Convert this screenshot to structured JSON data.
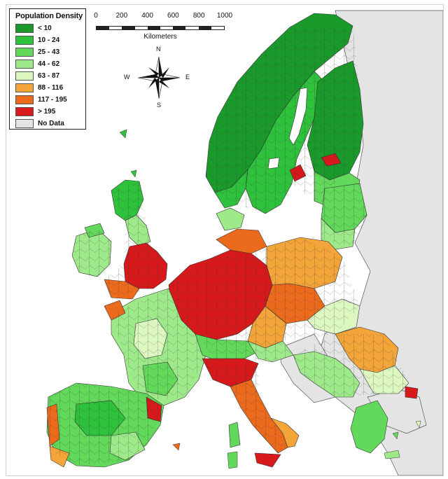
{
  "legend": {
    "title": "Population Density",
    "classes": [
      {
        "label": "< 10",
        "color": "#1a9a2a"
      },
      {
        "label": "10 - 24",
        "color": "#2ec13b"
      },
      {
        "label": "25 - 43",
        "color": "#62d95a"
      },
      {
        "label": "44 - 62",
        "color": "#9ee98a"
      },
      {
        "label": "63 - 87",
        "color": "#dcf7bf"
      },
      {
        "label": "88 - 116",
        "color": "#f3a53a"
      },
      {
        "label": "117 - 195",
        "color": "#ec6a1c"
      },
      {
        "label": "> 195",
        "color": "#d7191c"
      },
      {
        "label": "No Data",
        "color": "#e4e4e4"
      }
    ]
  },
  "scale": {
    "ticks": [
      "0",
      "200",
      "400",
      "600",
      "800",
      "1000"
    ],
    "units": "Kilometers"
  },
  "compass": {
    "n": "N",
    "s": "S",
    "e": "E",
    "w": "W"
  },
  "colors": {
    "sea": "#ffffff",
    "border": "#333333",
    "nodata": "#e4e4e4"
  }
}
